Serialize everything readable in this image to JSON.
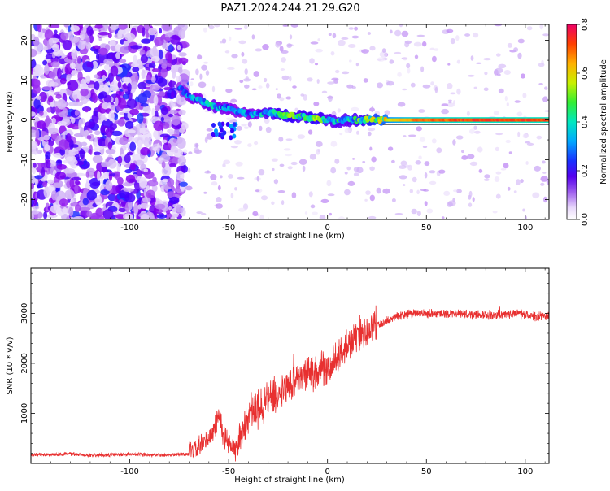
{
  "title": "PAZ1.2024.244.21.29.G20",
  "chart_data": [
    {
      "type": "heatmap",
      "xlabel": "Height of straight line (km)",
      "ylabel": "Frequency (Hz)",
      "xlim": [
        -150,
        112
      ],
      "ylim": [
        -25,
        24
      ],
      "xticks": [
        -100,
        -50,
        0,
        50,
        100
      ],
      "xtick_labels": [
        "-100",
        "-50",
        "0",
        "50",
        "100"
      ],
      "yticks": [
        -20,
        -10,
        0,
        10,
        20
      ],
      "ytick_labels": [
        "-20",
        "-10",
        "0",
        "10",
        "20"
      ],
      "colorbar": {
        "label": "Normalized spectral amplitude",
        "range": [
          0.0,
          0.8
        ],
        "ticks": [
          0.0,
          0.2,
          0.4,
          0.6,
          0.8
        ],
        "tick_labels": [
          "0.0",
          "0.2",
          "0.4",
          "0.6",
          "0.8"
        ],
        "colormap": [
          "#ffffff",
          "#c9a6f5",
          "#8800ee",
          "#3300ff",
          "#00a0ff",
          "#00e8c0",
          "#33ee33",
          "#d8f000",
          "#ffb000",
          "#ff4000",
          "#ee0066"
        ]
      },
      "ridge": {
        "x": [
          -75,
          -70,
          -65,
          -60,
          -55,
          -50,
          -45,
          -40,
          -35,
          -30,
          -25,
          -20,
          -15,
          -10,
          -5,
          0,
          5,
          10,
          15,
          20,
          25,
          30,
          40,
          50,
          60,
          70,
          80,
          90,
          100,
          112
        ],
        "frequency": [
          8,
          6,
          5,
          4,
          3,
          3,
          2,
          1.5,
          1.5,
          2,
          1.5,
          1,
          1,
          0.5,
          0.5,
          0,
          -0.5,
          0,
          0,
          0,
          0,
          0,
          0,
          0,
          0,
          0,
          0,
          0,
          0,
          0
        ],
        "amplitude": [
          0.25,
          0.28,
          0.3,
          0.35,
          0.32,
          0.3,
          0.28,
          0.3,
          0.32,
          0.38,
          0.4,
          0.45,
          0.4,
          0.42,
          0.45,
          0.35,
          0.38,
          0.35,
          0.4,
          0.45,
          0.5,
          0.55,
          0.65,
          0.7,
          0.7,
          0.72,
          0.72,
          0.72,
          0.72,
          0.72
        ]
      }
    },
    {
      "type": "line",
      "xlabel": "Height of straight line (km)",
      "ylabel": "SNR (10 * v/v)",
      "xlim": [
        -150,
        112
      ],
      "ylim": [
        0,
        3900
      ],
      "xticks": [
        -100,
        -50,
        0,
        50,
        100
      ],
      "xtick_labels": [
        "-100",
        "-50",
        "0",
        "50",
        "100"
      ],
      "yticks": [
        1000,
        2000,
        3000
      ],
      "ytick_labels": [
        "1000",
        "2000",
        "3000"
      ],
      "series": [
        {
          "color": "#e83030",
          "x": [
            -150,
            -140,
            -130,
            -120,
            -110,
            -100,
            -90,
            -80,
            -75,
            -70,
            -65,
            -60,
            -57,
            -55,
            -53,
            -50,
            -47,
            -45,
            -42,
            -40,
            -37,
            -35,
            -32,
            -30,
            -25,
            -20,
            -15,
            -10,
            -5,
            0,
            5,
            10,
            15,
            20,
            25,
            30,
            35,
            40,
            50,
            60,
            70,
            80,
            90,
            95,
            100,
            105,
            112
          ],
          "y": [
            180,
            170,
            190,
            160,
            170,
            180,
            170,
            170,
            180,
            190,
            300,
            500,
            700,
            1050,
            600,
            350,
            280,
            350,
            700,
            900,
            1100,
            1000,
            1200,
            1300,
            1400,
            1550,
            1700,
            1800,
            1850,
            1900,
            2150,
            2400,
            2550,
            2650,
            2750,
            2850,
            2950,
            2980,
            3000,
            2990,
            2980,
            2960,
            2980,
            3000,
            2960,
            2940,
            2950
          ]
        }
      ]
    }
  ]
}
